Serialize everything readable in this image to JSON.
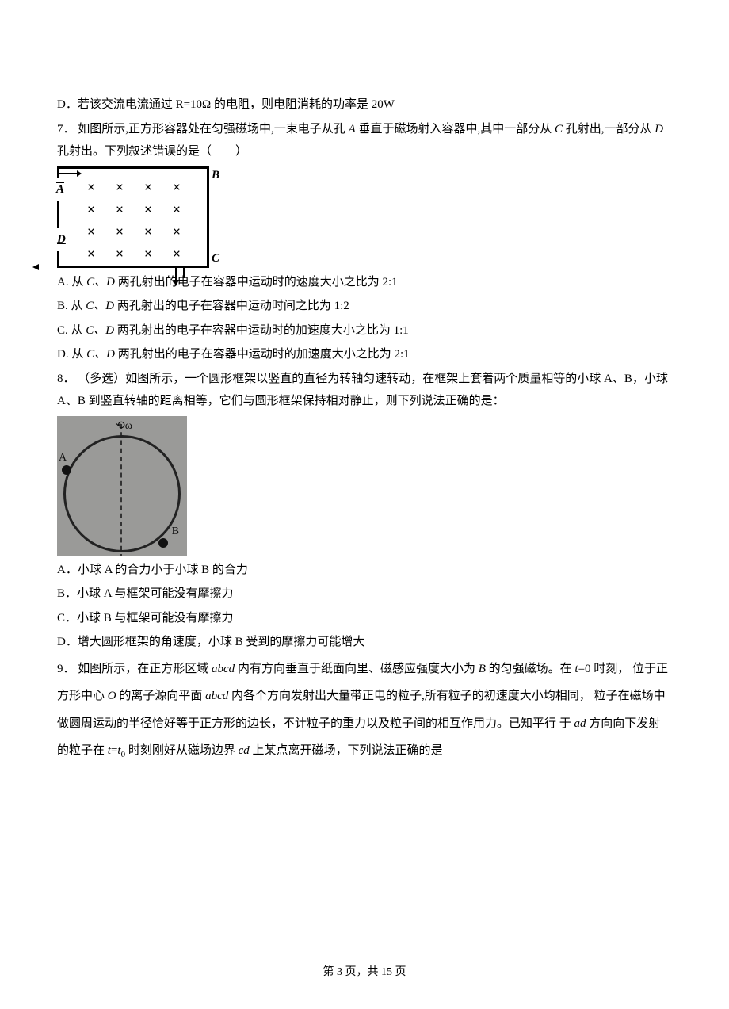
{
  "q6_d": "D．若该交流电流通过 R=10Ω 的电阻，则电阻消耗的功率是 20W",
  "q7": {
    "stem_1": "7． 如图所示,正方形容器处在匀强磁场中,一束电子从孔 ",
    "a_label": "A",
    "stem_2": " 垂直于磁场射入容器中,其中一部分从 ",
    "c_label": "C",
    "stem_3": " 孔射出,一部分从 ",
    "d_label": "D",
    "stem_4": " 孔射出。下列叙述错误的是（　　）",
    "fig": {
      "A": "A",
      "B": "B",
      "C": "C",
      "D": "D",
      "grid_rows": 4,
      "grid_cols": 4,
      "symbol": "×"
    },
    "opts": {
      "A_1": "A.  从 ",
      "A_cd": "C、D",
      "A_2": " 两孔射出的电子在容器中运动时的速度大小之比为 2:1",
      "B_1": "B.  从 ",
      "B_cd": "C、D",
      "B_2": " 两孔射出的电子在容器中运动时间之比为 1:2",
      "C_1": "C.  从 ",
      "C_cd": "C、D",
      "C_2": " 两孔射出的电子在容器中运动时的加速度大小之比为 1:1",
      "D_1": "D.  从 ",
      "D_cd": "C、D",
      "D_2": " 两孔射出的电子在容器中运动时的加速度大小之比为 2:1"
    }
  },
  "q8": {
    "stem_1": "8． （多选）如图所示，一个圆形框架以竖直的直径为转轴匀速转动，在框架上套着两个质量相等的小球 A、B，小球 A、B 到竖直转轴的距离相等，它们与圆形框架保持相对静止，则下列说法正确的是：",
    "fig": {
      "A": "A",
      "B": "B",
      "top": "⟲ω"
    },
    "opts": {
      "A": "A．小球 A 的合力小于小球 B 的合力",
      "B": "B．小球 A 与框架可能没有摩擦力",
      "C": "C．小球 B 与框架可能没有摩擦力",
      "D": "D．增大圆形框架的角速度，小球 B 受到的摩擦力可能增大"
    }
  },
  "q9": {
    "p1_1": "9． 如图所示，在正方形区域 ",
    "abcd1": "abcd",
    "p1_2": " 内有方向垂直于纸面向里、磁感应强度大小为 ",
    "B": "B",
    "p1_3": " 的匀强磁场。在 ",
    "t": "t",
    "p1_4": "=0 时刻，",
    "p2_1": "位于正方形中心 ",
    "O": "O",
    "p2_2": " 的离子源向平面 ",
    "abcd2": "abcd",
    "p2_3": " 内各个方向发射出大量带正电的粒子,所有粒子的初速度大小均相同，",
    "p3": "粒子在磁场中做圆周运动的半径恰好等于正方形的边长，不计粒子的重力以及粒子间的相互作用力。已知平行",
    "p4_1": "于 ",
    "ad": "ad",
    "p4_2": " 方向向下发射的粒子在 ",
    "t2": "t",
    "eq": "=",
    "t0": "t",
    "zero": "0",
    "p4_3": " 时刻刚好从磁场边界 ",
    "cd": "cd",
    "p4_4": " 上某点离开磁场，下列说法正确的是"
  },
  "footer": {
    "pre": "第 ",
    "page": "3",
    "mid": " 页，共 ",
    "total": "15",
    "post": " 页"
  }
}
